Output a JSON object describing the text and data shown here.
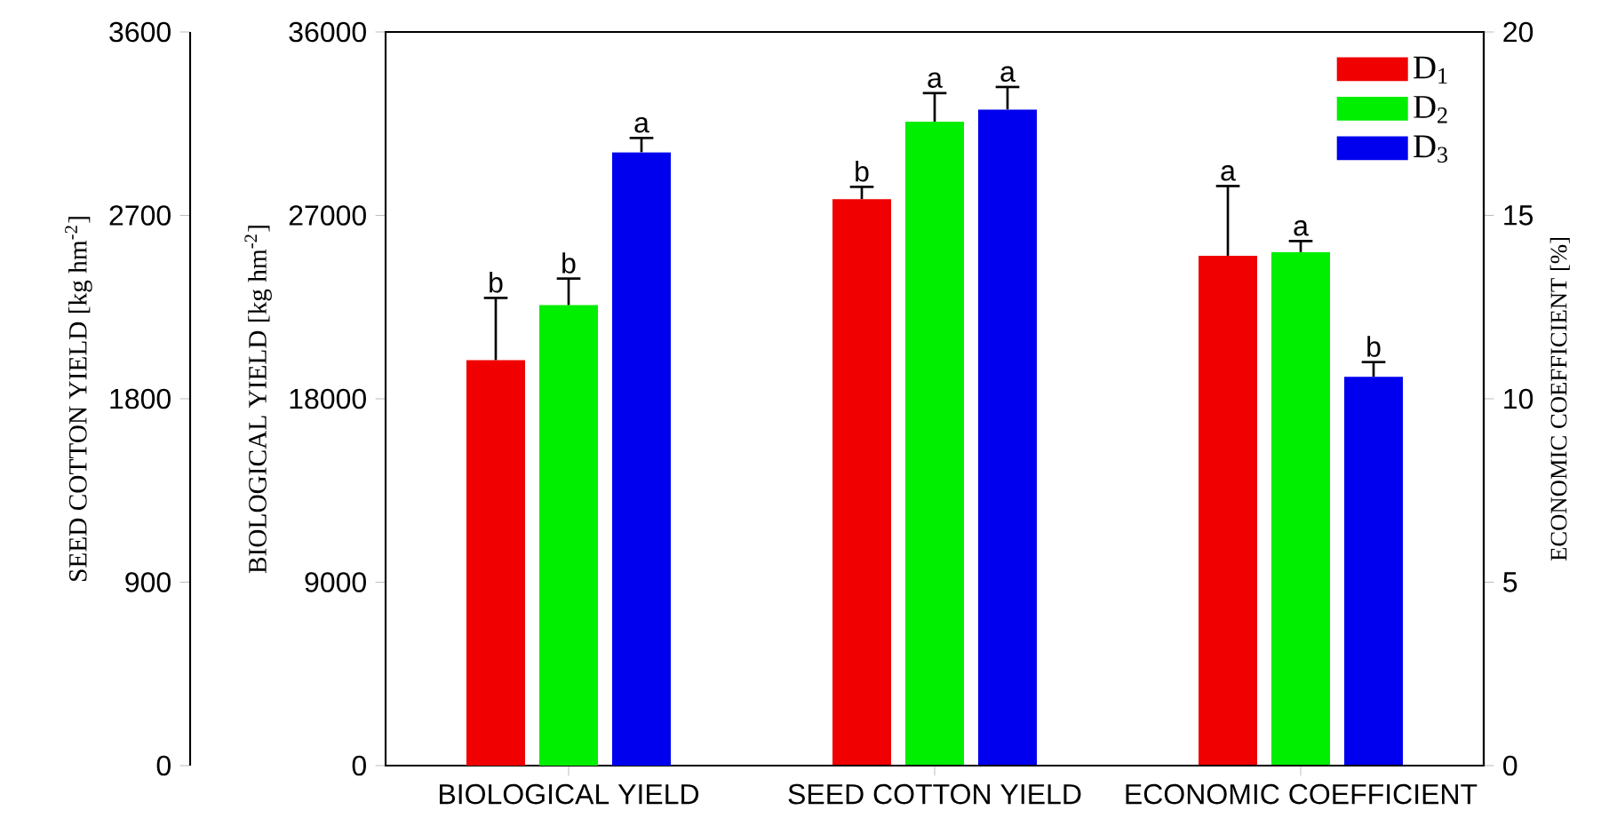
{
  "chart_data": {
    "type": "bar",
    "categories": [
      "BIOLOGICAL YIELD",
      "SEED COTTON YIELD",
      "ECONOMIC COEFFICIENT"
    ],
    "ylabel": "BIOLOGICAL YIELD [kg hm$^{-2}$]",
    "y2label": "ECONOMIC COEFFICIENT [%]",
    "y3label": "SEED COTTON  YIELD [kg hm$^{-2}$]",
    "ylim": [
      0,
      36000
    ],
    "yticks": [
      0,
      9000,
      18000,
      27000,
      36000
    ],
    "y2lim": [
      0,
      20
    ],
    "y2ticks": [
      0,
      5,
      10,
      15,
      20
    ],
    "y3lim": [
      0,
      3600
    ],
    "y3ticks": [
      0,
      900,
      1800,
      2700,
      3600
    ],
    "legend": "top right",
    "series": [
      {
        "name": "D$_{1}$",
        "color": "#f00000",
        "axis": "y",
        "values": [
          19900,
          null,
          null
        ],
        "errors": [
          [
            19900,
            22950
          ],
          null,
          null
        ],
        "value_labels": [
          "b",
          null,
          null
        ]
      },
      {
        "name": "D$_{2}$",
        "color": "#00ee00",
        "axis": "y",
        "values": [
          22600,
          null,
          null
        ],
        "errors": [
          [
            22600,
            23900
          ],
          null,
          null
        ],
        "value_labels": [
          "b",
          null,
          null
        ]
      },
      {
        "name": "D$_{3}$",
        "color": "#0000ee",
        "axis": "y",
        "values": [
          30100,
          null,
          null
        ],
        "errors": [
          [
            30100,
            30800
          ],
          null,
          null
        ],
        "value_labels": [
          "a",
          null,
          null
        ]
      },
      {
        "color": "#f00000",
        "axis": "y3",
        "values": [
          null,
          2780,
          null
        ],
        "errors": [
          null,
          [
            2780,
            2840
          ],
          null
        ],
        "value_labels": [
          null,
          "b",
          null
        ]
      },
      {
        "color": "#00ee00",
        "axis": "y3",
        "values": [
          null,
          3160,
          null
        ],
        "errors": [
          null,
          [
            3160,
            3300
          ],
          null
        ],
        "value_labels": [
          null,
          "a",
          null
        ]
      },
      {
        "color": "#0000ee",
        "axis": "y3",
        "values": [
          null,
          3220,
          null
        ],
        "errors": [
          null,
          [
            3220,
            3330
          ],
          null
        ],
        "value_labels": [
          null,
          "a",
          null
        ]
      },
      {
        "color": "#f00000",
        "axis": "y2",
        "values": [
          null,
          null,
          13.9
        ],
        "errors": [
          null,
          null,
          [
            13.9,
            15.8
          ]
        ],
        "value_labels": [
          null,
          null,
          "a"
        ]
      },
      {
        "color": "#00ee00",
        "axis": "y2",
        "values": [
          null,
          null,
          14.0
        ],
        "errors": [
          null,
          null,
          [
            14.0,
            14.3
          ]
        ],
        "value_labels": [
          null,
          null,
          "a"
        ]
      },
      {
        "color": "#0000ee",
        "axis": "y2",
        "values": [
          null,
          null,
          10.6
        ],
        "errors": [
          null,
          null,
          [
            10.6,
            11.0
          ]
        ],
        "value_labels": [
          null,
          null,
          "b"
        ]
      }
    ]
  }
}
